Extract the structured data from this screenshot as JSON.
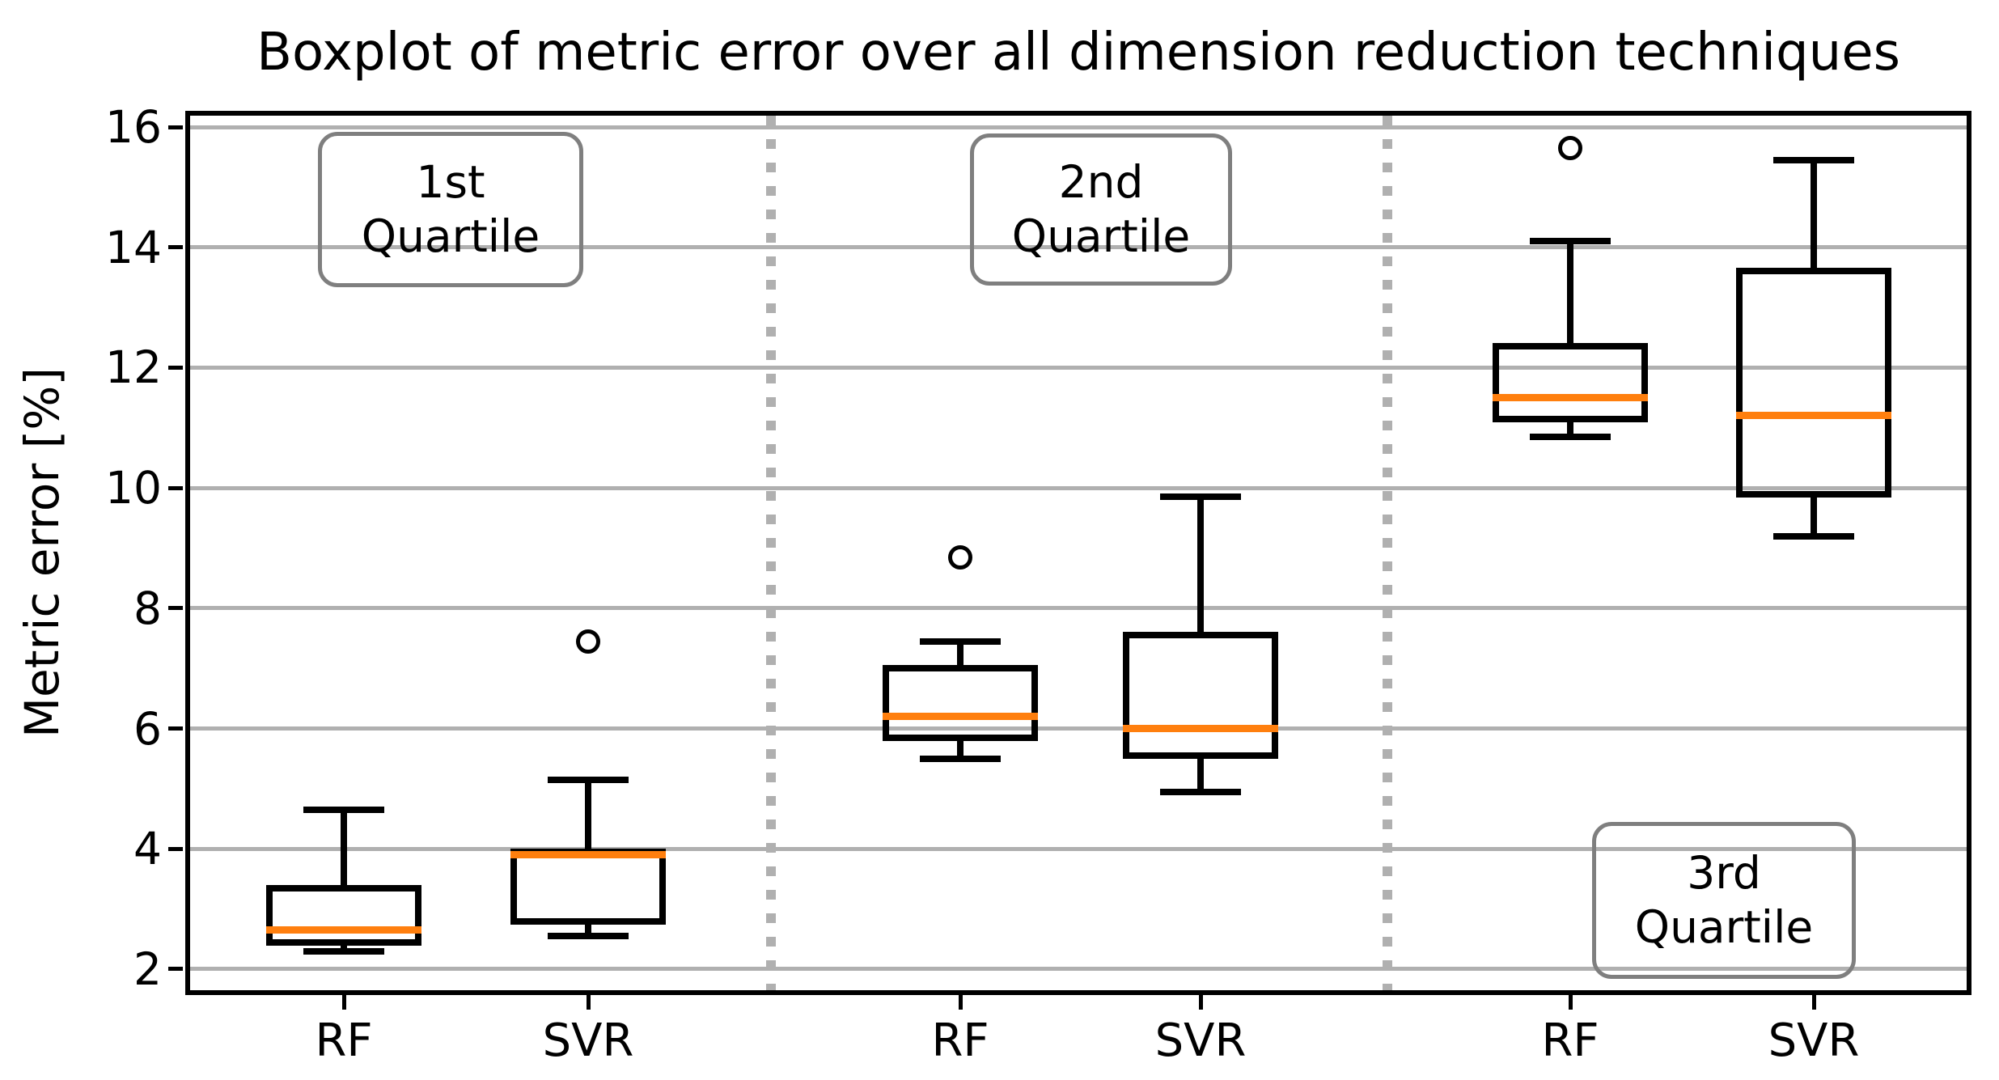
{
  "title": "Boxplot of metric error over all dimension reduction techniques",
  "y_axis": {
    "label": "Metric error [%]",
    "ticks": [
      "16",
      "14",
      "12",
      "10",
      "8",
      "6",
      "4",
      "2"
    ]
  },
  "x_axis": {
    "tick_labels": [
      "RF",
      "SVR",
      "RF",
      "SVR",
      "RF",
      "SVR"
    ]
  },
  "annotations": [
    {
      "line1": "1st",
      "line2": "Quartile"
    },
    {
      "line1": "2nd",
      "line2": "Quartile"
    },
    {
      "line1": "3rd",
      "line2": "Quartile"
    }
  ],
  "colors": {
    "median_line": "#ff7f0e",
    "box_line": "#000000",
    "gridline": "#b0b0b0",
    "separator": "#b0b0b0",
    "annotation_border": "#7f7f7f"
  },
  "chart_data": {
    "type": "boxplot",
    "title": "Boxplot of metric error over all dimension reduction techniques",
    "xlabel": "",
    "ylabel": "Metric error [%]",
    "ylim": [
      1.6,
      16.25
    ],
    "y_ticks": [
      16,
      14,
      12,
      10,
      8,
      6,
      4,
      2
    ],
    "grid": "horizontal",
    "groups": [
      "1st Quartile",
      "2nd Quartile",
      "3rd Quartile"
    ],
    "series": [
      {
        "group": "1st Quartile",
        "label": "RF",
        "whisker_low": 2.3,
        "q1": 2.45,
        "median": 2.65,
        "q3": 3.35,
        "whisker_high": 4.65,
        "outliers": []
      },
      {
        "group": "1st Quartile",
        "label": "SVR",
        "whisker_low": 2.55,
        "q1": 2.8,
        "median": 3.9,
        "q3": 3.95,
        "whisker_high": 5.15,
        "outliers": [
          7.45
        ]
      },
      {
        "group": "2nd Quartile",
        "label": "RF",
        "whisker_low": 5.5,
        "q1": 5.85,
        "median": 6.2,
        "q3": 7.0,
        "whisker_high": 7.45,
        "outliers": [
          8.85
        ]
      },
      {
        "group": "2nd Quartile",
        "label": "SVR",
        "whisker_low": 4.95,
        "q1": 5.55,
        "median": 6.0,
        "q3": 7.55,
        "whisker_high": 9.85,
        "outliers": []
      },
      {
        "group": "3rd Quartile",
        "label": "RF",
        "whisker_low": 10.85,
        "q1": 11.15,
        "median": 11.5,
        "q3": 12.35,
        "whisker_high": 14.1,
        "outliers": [
          15.65
        ]
      },
      {
        "group": "3rd Quartile",
        "label": "SVR",
        "whisker_low": 9.2,
        "q1": 9.9,
        "median": 11.2,
        "q3": 13.6,
        "whisker_high": 15.45,
        "outliers": []
      }
    ]
  }
}
